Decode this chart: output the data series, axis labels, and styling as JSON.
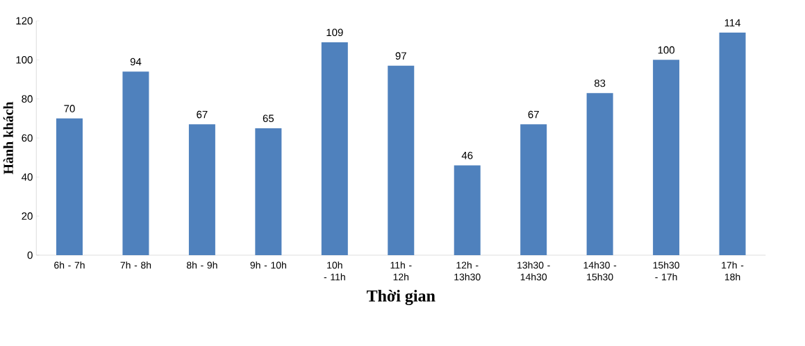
{
  "chart_data": {
    "type": "bar",
    "categories": [
      "6h - 7h",
      "7h - 8h",
      "8h - 9h",
      "9h - 10h",
      "10h - 11h",
      "11h - 12h",
      "12h - 13h30",
      "13h30 - 14h30",
      "14h30 - 15h30",
      "15h30 - 17h",
      "17h - 18h"
    ],
    "values": [
      70,
      94,
      67,
      65,
      109,
      97,
      46,
      67,
      83,
      100,
      114
    ],
    "color": "#4f81bd",
    "xlabel": "Thời gian",
    "ylabel": "Hành khách",
    "ylim": [
      0,
      120
    ],
    "yticks": [
      0,
      20,
      40,
      60,
      80,
      100,
      120
    ],
    "data_labels": true
  }
}
